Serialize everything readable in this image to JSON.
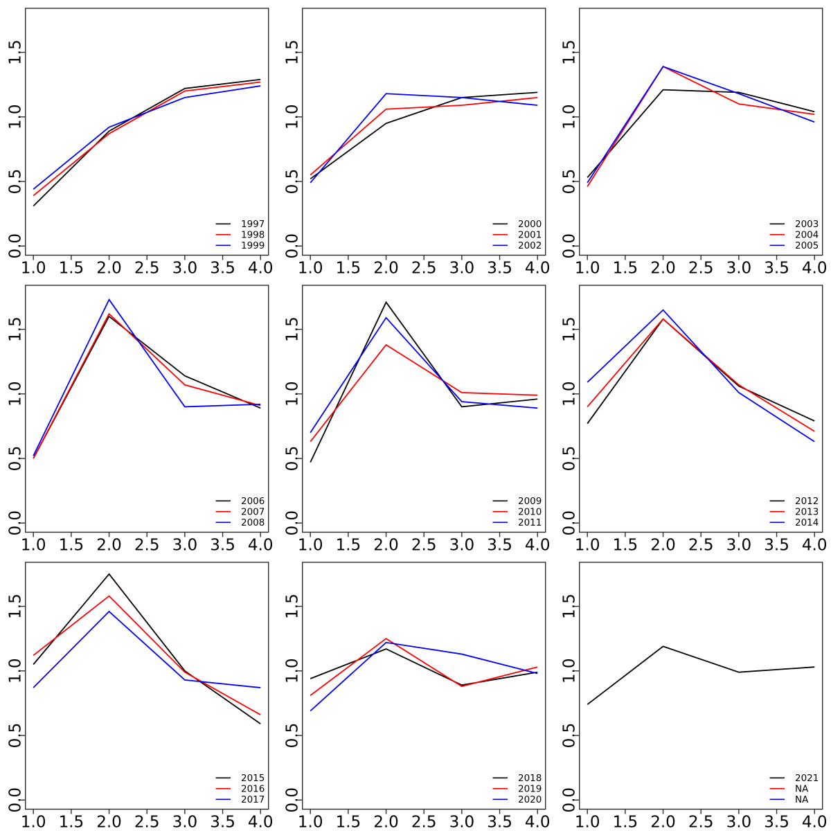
{
  "figure": {
    "background": "#ffffff",
    "grid": "3x3",
    "description": "3x3 grid of base-R style line charts, three yearly series per panel"
  },
  "palette": {
    "series1": "#000000",
    "series2": "#ff0000",
    "series3": "#0000ff",
    "axis": "#2b2b2b"
  },
  "axes": {
    "x_tick_labels": [
      "1.0",
      "1.5",
      "2.0",
      "2.5",
      "3.0",
      "3.5",
      "4.0"
    ],
    "x_tick_values": [
      1,
      1.5,
      2,
      2.5,
      3,
      3.5,
      4
    ],
    "y_tick_labels": [
      "0.0",
      "0.5",
      "1.0",
      "1.5"
    ],
    "y_tick_values": [
      0,
      0.5,
      1,
      1.5
    ],
    "x_range": [
      0.895,
      4.105
    ],
    "y_range": [
      -0.071,
      1.841
    ],
    "grid_lines": false,
    "legend_position": "bottom-right",
    "legend_box": false
  },
  "chart_data": [
    {
      "id": "panel-1",
      "type": "line",
      "x": [
        1,
        2,
        3,
        4
      ],
      "series": [
        {
          "name": "1997",
          "color": "#000000",
          "values": [
            0.31,
            0.89,
            1.22,
            1.29
          ]
        },
        {
          "name": "1998",
          "color": "#ff0000",
          "values": [
            0.39,
            0.87,
            1.2,
            1.27
          ]
        },
        {
          "name": "1999",
          "color": "#0000ff",
          "values": [
            0.44,
            0.92,
            1.15,
            1.24
          ]
        }
      ]
    },
    {
      "id": "panel-2",
      "type": "line",
      "x": [
        1,
        2,
        3,
        4
      ],
      "series": [
        {
          "name": "2000",
          "color": "#000000",
          "values": [
            0.52,
            0.95,
            1.15,
            1.19
          ]
        },
        {
          "name": "2001",
          "color": "#ff0000",
          "values": [
            0.55,
            1.06,
            1.09,
            1.15
          ]
        },
        {
          "name": "2002",
          "color": "#0000ff",
          "values": [
            0.49,
            1.18,
            1.15,
            1.09
          ]
        }
      ]
    },
    {
      "id": "panel-3",
      "type": "line",
      "x": [
        1,
        2,
        3,
        4
      ],
      "series": [
        {
          "name": "2003",
          "color": "#000000",
          "values": [
            0.53,
            1.21,
            1.19,
            1.04
          ]
        },
        {
          "name": "2004",
          "color": "#ff0000",
          "values": [
            0.46,
            1.39,
            1.1,
            1.02
          ]
        },
        {
          "name": "2005",
          "color": "#0000ff",
          "values": [
            0.49,
            1.39,
            1.18,
            0.96
          ]
        }
      ]
    },
    {
      "id": "panel-4",
      "type": "line",
      "x": [
        1,
        2,
        3,
        4
      ],
      "series": [
        {
          "name": "2006",
          "color": "#000000",
          "values": [
            0.5,
            1.6,
            1.14,
            0.89
          ]
        },
        {
          "name": "2007",
          "color": "#ff0000",
          "values": [
            0.5,
            1.62,
            1.07,
            0.91
          ]
        },
        {
          "name": "2008",
          "color": "#0000ff",
          "values": [
            0.52,
            1.73,
            0.9,
            0.92
          ]
        }
      ]
    },
    {
      "id": "panel-5",
      "type": "line",
      "x": [
        1,
        2,
        3,
        4
      ],
      "series": [
        {
          "name": "2009",
          "color": "#000000",
          "values": [
            0.47,
            1.71,
            0.9,
            0.96
          ]
        },
        {
          "name": "2010",
          "color": "#ff0000",
          "values": [
            0.63,
            1.38,
            1.01,
            0.99
          ]
        },
        {
          "name": "2011",
          "color": "#0000ff",
          "values": [
            0.7,
            1.59,
            0.94,
            0.89
          ]
        }
      ]
    },
    {
      "id": "panel-6",
      "type": "line",
      "x": [
        1,
        2,
        3,
        4
      ],
      "series": [
        {
          "name": "2012",
          "color": "#000000",
          "values": [
            0.77,
            1.58,
            1.06,
            0.79
          ]
        },
        {
          "name": "2013",
          "color": "#ff0000",
          "values": [
            0.9,
            1.58,
            1.07,
            0.71
          ]
        },
        {
          "name": "2014",
          "color": "#0000ff",
          "values": [
            1.09,
            1.65,
            1.01,
            0.63
          ]
        }
      ]
    },
    {
      "id": "panel-7",
      "type": "line",
      "x": [
        1,
        2,
        3,
        4
      ],
      "series": [
        {
          "name": "2015",
          "color": "#000000",
          "values": [
            1.05,
            1.75,
            1.0,
            0.59
          ]
        },
        {
          "name": "2016",
          "color": "#ff0000",
          "values": [
            1.12,
            1.58,
            0.99,
            0.66
          ]
        },
        {
          "name": "2017",
          "color": "#0000ff",
          "values": [
            0.87,
            1.46,
            0.93,
            0.87
          ]
        }
      ]
    },
    {
      "id": "panel-8",
      "type": "line",
      "x": [
        1,
        2,
        3,
        4
      ],
      "series": [
        {
          "name": "2018",
          "color": "#000000",
          "values": [
            0.94,
            1.17,
            0.89,
            0.99
          ]
        },
        {
          "name": "2019",
          "color": "#ff0000",
          "values": [
            0.81,
            1.25,
            0.88,
            1.03
          ]
        },
        {
          "name": "2020",
          "color": "#0000ff",
          "values": [
            0.69,
            1.22,
            1.13,
            0.98
          ]
        }
      ]
    },
    {
      "id": "panel-9",
      "type": "line",
      "x": [
        1,
        2,
        3,
        4
      ],
      "series": [
        {
          "name": "2021",
          "color": "#000000",
          "values": [
            0.74,
            1.19,
            0.99,
            1.03
          ]
        },
        {
          "name": "NA",
          "color": "#ff0000",
          "values": null
        },
        {
          "name": "NA",
          "color": "#0000ff",
          "values": null
        }
      ]
    }
  ]
}
